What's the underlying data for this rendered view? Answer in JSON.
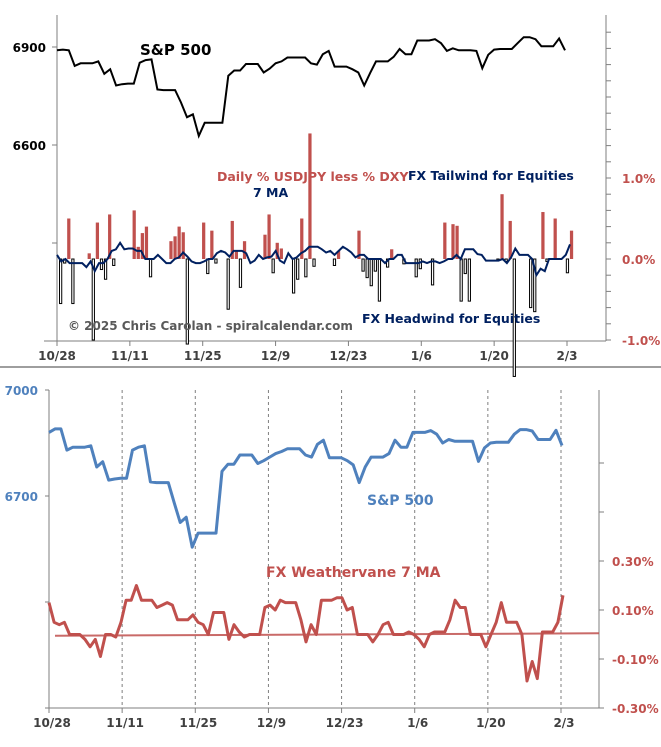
{
  "chart_data": [
    {
      "type": "bar",
      "name": "top-panel",
      "title": "",
      "annotations": {
        "sp500_label": "S&P 500",
        "bars_label": "Daily % USDJPY less % DXY",
        "ma_label": "7 MA",
        "tailwind": "FX Tailwind for Equities",
        "headwind": "FX Headwind for Equities",
        "copyright": "© 2025 Chris Carolan - spiralcalendar.com"
      },
      "x_tick_labels": [
        "10/28",
        "11/11",
        "11/25",
        "12/9",
        "12/23",
        "1/6",
        "1/20",
        "2/3"
      ],
      "left_axis": {
        "ticks": [
          6900,
          6600
        ],
        "tick_labels": [
          "6900",
          "6600"
        ],
        "ylim": [
          6300,
          7000
        ]
      },
      "right_axis": {
        "ticks": [
          1.0,
          0.0,
          -1.0
        ],
        "tick_labels": [
          "1.0%",
          "0.0%",
          "-1.0%"
        ],
        "ylim": [
          -1.0,
          2.8
        ]
      },
      "series": [
        {
          "name": "S&P 500",
          "axis": "left",
          "kind": "line",
          "color": "#000000",
          "values": [
            6890,
            6892,
            6890,
            6842,
            6850,
            6850,
            6850,
            6856,
            6818,
            6832,
            6782,
            6786,
            6788,
            6788,
            6852,
            6860,
            6862,
            6770,
            6768,
            6768,
            6768,
            6730,
            6685,
            6694,
            6628,
            6668,
            6668,
            6668,
            6668,
            6812,
            6828,
            6828,
            6848,
            6848,
            6848,
            6822,
            6834,
            6850,
            6856,
            6868,
            6868,
            6868,
            6868,
            6850,
            6846,
            6878,
            6888,
            6840,
            6840,
            6840,
            6832,
            6822,
            6782,
            6820,
            6856,
            6856,
            6856,
            6870,
            6894,
            6878,
            6878,
            6920,
            6920,
            6920,
            6924,
            6912,
            6888,
            6896,
            6890,
            6890,
            6890,
            6888,
            6835,
            6876,
            6892,
            6894,
            6894,
            6894,
            6912,
            6930,
            6930,
            6924,
            6902,
            6902,
            6902,
            6926,
            6890
          ]
        },
        {
          "name": "Daily % USDJPY less % DXY",
          "axis": "right",
          "kind": "bar",
          "color_pos": "#C0504D",
          "color_neg": "#FFFFFF",
          "values": [
            -0.55,
            -0.05,
            0.5,
            -0.55,
            0.0,
            0.0,
            0.0,
            0.07,
            -1.0,
            0.45,
            -0.13,
            -0.25,
            0.55,
            -0.08,
            0.0,
            0.0,
            0.0,
            0.0,
            0.6,
            0.15,
            0.32,
            0.4,
            -0.22,
            0.0,
            0.0,
            0.0,
            0.0,
            0.22,
            0.28,
            0.4,
            0.33,
            -1.05,
            0.0,
            0.0,
            0.0,
            0.45,
            -0.18,
            0.35,
            -0.05,
            0.0,
            0.0,
            -0.62,
            0.47,
            0.1,
            -0.35,
            0.22,
            0.0,
            0.0,
            0.0,
            0.0,
            0.3,
            0.55,
            -0.17,
            0.2,
            0.13,
            0.0,
            0.0,
            -0.42,
            -0.25,
            0.5,
            -0.22,
            1.55,
            -0.09,
            0.0,
            0.0,
            0.0,
            0.0,
            -0.08,
            0.1,
            0.0,
            0.0,
            0.0,
            0.0,
            0.35,
            -0.15,
            -0.23,
            -0.33,
            -0.15,
            -0.52,
            0.0,
            -0.1,
            0.12,
            0.0,
            0.0,
            -0.06,
            0.0,
            0.0,
            -0.22,
            -0.12,
            0.0,
            0.0,
            -0.32,
            0.0,
            0.0,
            0.45,
            0.0,
            0.43,
            0.41,
            -0.52,
            -0.18,
            -0.52,
            0.0,
            0.0,
            0.0,
            0.0,
            0.0,
            0.0,
            -0.02,
            0.8,
            -0.03,
            0.47,
            -1.45,
            0.0,
            0.0,
            0.0,
            -0.6,
            -0.65,
            0.0,
            0.58,
            -0.03,
            0.0,
            0.5,
            0.0,
            0.0,
            -0.17,
            0.35
          ]
        },
        {
          "name": "7 MA",
          "axis": "right",
          "kind": "line",
          "color": "#002060",
          "values": [
            0.05,
            -0.03,
            0.0,
            -0.05,
            -0.05,
            -0.05,
            -0.05,
            -0.1,
            -0.03,
            -0.15,
            -0.05,
            -0.05,
            0.0,
            0.1,
            0.12,
            0.2,
            0.12,
            0.13,
            0.13,
            0.1,
            0.1,
            0.0,
            0.0,
            0.0,
            0.05,
            0.0,
            -0.05,
            -0.05,
            0.0,
            0.02,
            0.08,
            0.03,
            -0.03,
            -0.05,
            -0.05,
            -0.03,
            0.0,
            0.0,
            0.07,
            0.1,
            0.08,
            0.03,
            0.1,
            0.1,
            0.1,
            0.07,
            -0.05,
            -0.02,
            0.05,
            0.0,
            0.02,
            0.03,
            0.1,
            -0.02,
            -0.05,
            0.07,
            0.0,
            0.02,
            0.07,
            0.1,
            0.15,
            0.15,
            0.15,
            0.12,
            0.08,
            0.1,
            0.05,
            0.1,
            0.15,
            0.12,
            0.08,
            0.02,
            0.05,
            0.05,
            0.0,
            0.0,
            0.0,
            0.0,
            -0.05,
            0.0,
            0.0,
            0.05,
            0.05,
            -0.05,
            -0.05,
            -0.05,
            -0.05,
            -0.03,
            -0.05,
            -0.03,
            -0.03,
            -0.05,
            -0.03,
            0.0,
            0.0,
            0.05,
            0.0,
            0.12,
            0.12,
            0.12,
            0.06,
            0.05,
            -0.02,
            -0.02,
            -0.02,
            -0.02,
            0.0,
            -0.05,
            0.02,
            0.13,
            0.05,
            0.05,
            0.05,
            0.0,
            -0.2,
            -0.12,
            -0.15,
            0.0,
            0.0,
            0.0,
            0.0,
            0.05,
            0.18
          ]
        }
      ]
    },
    {
      "type": "line",
      "name": "bottom-panel",
      "title": "",
      "annotations": {
        "sp500_label": "S&P 500",
        "fx_label": "FX Weathervane 7 MA"
      },
      "x_tick_labels": [
        "10/28",
        "11/11",
        "11/25",
        "12/9",
        "12/23",
        "1/6",
        "1/20",
        "2/3"
      ],
      "grid": "vertical dashed at each x tick",
      "left_axis": {
        "ticks": [
          7000,
          6700
        ],
        "tick_labels": [
          "7000",
          "6700"
        ],
        "ylim": [
          6100,
          7000
        ]
      },
      "right_axis": {
        "ticks": [
          0.3,
          0.1,
          -0.1,
          -0.3
        ],
        "tick_labels": [
          "0.30%",
          "0.10%",
          "-0.10%",
          "-0.30%"
        ],
        "ylim": [
          -0.3,
          0.6
        ]
      },
      "series": [
        {
          "name": "S&P 500",
          "axis": "left",
          "kind": "line",
          "color": "#4F81BD",
          "values": [
            6880,
            6890,
            6890,
            6830,
            6838,
            6838,
            6838,
            6842,
            6782,
            6797,
            6745,
            6748,
            6750,
            6750,
            6830,
            6838,
            6842,
            6740,
            6738,
            6738,
            6738,
            6680,
            6625,
            6640,
            6555,
            6595,
            6595,
            6595,
            6595,
            6770,
            6790,
            6790,
            6816,
            6816,
            6816,
            6792,
            6800,
            6810,
            6820,
            6826,
            6834,
            6834,
            6834,
            6816,
            6810,
            6846,
            6858,
            6808,
            6808,
            6808,
            6800,
            6788,
            6738,
            6782,
            6810,
            6810,
            6810,
            6820,
            6858,
            6838,
            6838,
            6880,
            6880,
            6880,
            6885,
            6875,
            6850,
            6860,
            6855,
            6855,
            6855,
            6855,
            6798,
            6836,
            6850,
            6852,
            6852,
            6852,
            6875,
            6888,
            6888,
            6884,
            6860,
            6860,
            6860,
            6886,
            6843
          ]
        },
        {
          "name": "FX Weathervane 7 MA",
          "axis": "right",
          "kind": "line",
          "color": "#C0504D",
          "values": [
            0.13,
            0.05,
            0.04,
            0.05,
            0.0,
            0.0,
            0.0,
            -0.02,
            -0.05,
            -0.02,
            -0.09,
            0.0,
            0.0,
            -0.01,
            0.05,
            0.14,
            0.14,
            0.2,
            0.14,
            0.14,
            0.14,
            0.11,
            0.12,
            0.13,
            0.12,
            0.06,
            0.06,
            0.06,
            0.08,
            0.05,
            0.04,
            0.0,
            0.09,
            0.09,
            0.09,
            -0.02,
            0.04,
            0.01,
            -0.01,
            0.0,
            0.0,
            0.0,
            0.11,
            0.12,
            0.1,
            0.14,
            0.13,
            0.13,
            0.13,
            0.06,
            -0.03,
            0.04,
            0.0,
            0.14,
            0.14,
            0.14,
            0.15,
            0.15,
            0.1,
            0.11,
            0.0,
            0.0,
            0.0,
            -0.03,
            0.0,
            0.04,
            0.05,
            0.0,
            0.0,
            0.0,
            0.01,
            0.0,
            -0.02,
            -0.05,
            0.0,
            0.01,
            0.01,
            0.01,
            0.06,
            0.14,
            0.11,
            0.11,
            0.0,
            0.0,
            0.0,
            -0.05,
            0.0,
            0.05,
            0.13,
            0.05,
            0.05,
            0.05,
            0.0,
            -0.19,
            -0.11,
            -0.18,
            0.01,
            0.01,
            0.01,
            0.05,
            0.16
          ]
        },
        {
          "name": "FX Weathervane trend",
          "axis": "right",
          "kind": "line",
          "color": "#C0504D",
          "values": [
            -0.005,
            0.005
          ]
        }
      ]
    }
  ]
}
